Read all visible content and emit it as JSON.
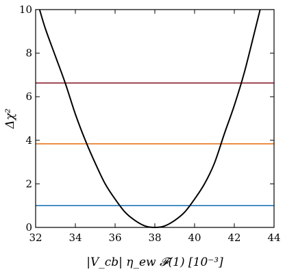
{
  "chart_data": {
    "type": "line",
    "title": "",
    "xlabel": "|V_cb| η_ew 𝓕(1)  [10⁻³]",
    "ylabel": "Δχ²",
    "xlim": [
      32,
      44
    ],
    "ylim": [
      0,
      10
    ],
    "xticks": [
      32,
      34,
      36,
      38,
      40,
      42,
      44
    ],
    "yticks": [
      0,
      2,
      4,
      6,
      8,
      10
    ],
    "xtick_labels": [
      "32",
      "34",
      "36",
      "38",
      "40",
      "42",
      "44"
    ],
    "ytick_labels": [
      "0",
      "2",
      "4",
      "6",
      "8",
      "10"
    ],
    "grid": false,
    "legend": "none",
    "curve": {
      "color": "#000000",
      "x": [
        32.2,
        32.5,
        33.0,
        33.5,
        34.0,
        34.5,
        35.0,
        35.5,
        36.0,
        36.5,
        37.0,
        37.5,
        38.0,
        38.5,
        39.0,
        39.5,
        40.0,
        40.5,
        41.0,
        41.5,
        42.0,
        42.5,
        43.0,
        43.3
      ],
      "y": [
        10.0,
        9.1,
        7.85,
        6.6,
        5.2,
        4.0,
        2.95,
        2.0,
        1.3,
        0.7,
        0.32,
        0.07,
        0.0,
        0.07,
        0.32,
        0.7,
        1.3,
        2.0,
        2.95,
        4.3,
        5.6,
        7.1,
        8.9,
        10.0
      ]
    },
    "hlines": [
      {
        "y": 1.0,
        "color": "#1f77b4"
      },
      {
        "y": 3.84,
        "color": "#e8761e"
      },
      {
        "y": 6.63,
        "color": "#8b2331"
      }
    ]
  }
}
